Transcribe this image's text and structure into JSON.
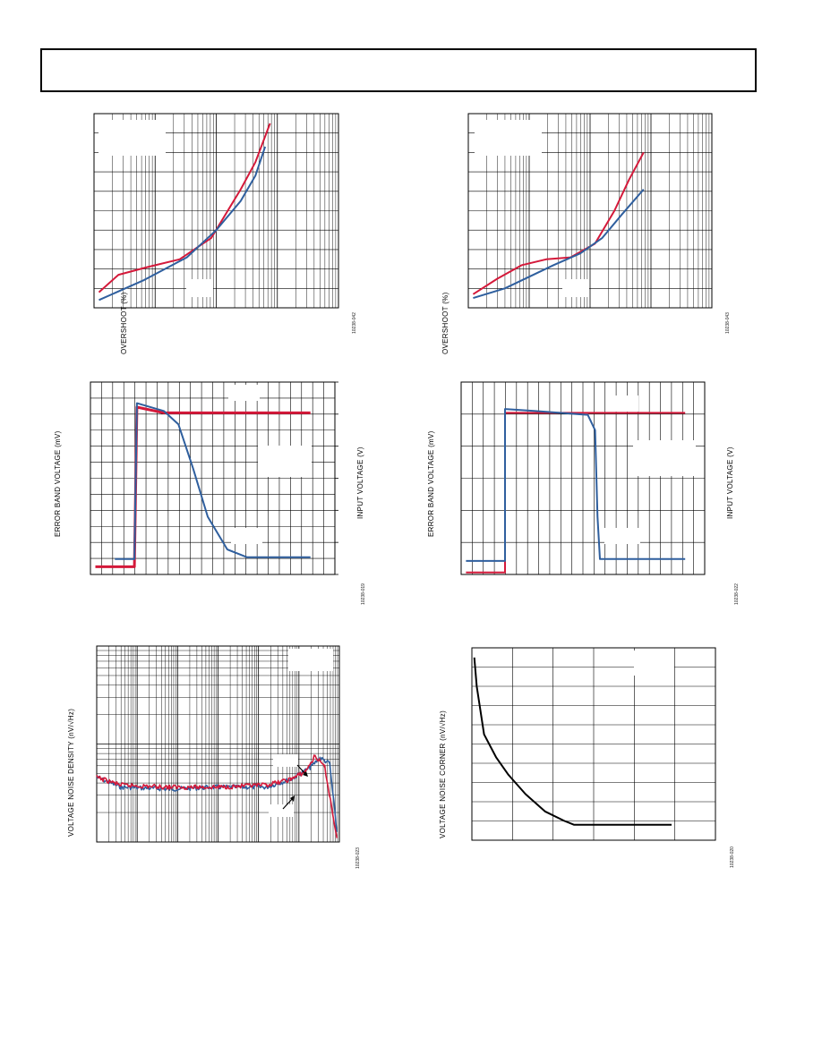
{
  "page": {
    "colors": {
      "series_red": "#d4193a",
      "series_blue": "#2f5f9e",
      "grid": "#000000",
      "label_box": "#ffffff"
    }
  },
  "figures": [
    {
      "id": "fig-overshoot-left",
      "ylabel": "OVERSHOOT (%)",
      "fig_id": "10238-042",
      "chart_data": {
        "type": "line",
        "x_scale": "log",
        "grid": true,
        "series": [
          {
            "color": "red",
            "points": [
              [
                0.02,
                0.08
              ],
              [
                0.1,
                0.17
              ],
              [
                0.22,
                0.21
              ],
              [
                0.35,
                0.25
              ],
              [
                0.48,
                0.36
              ],
              [
                0.6,
                0.61
              ],
              [
                0.66,
                0.75
              ],
              [
                0.72,
                0.95
              ]
            ]
          },
          {
            "color": "blue",
            "points": [
              [
                0.02,
                0.04
              ],
              [
                0.2,
                0.14
              ],
              [
                0.38,
                0.26
              ],
              [
                0.5,
                0.4
              ],
              [
                0.6,
                0.55
              ],
              [
                0.66,
                0.68
              ],
              [
                0.7,
                0.83
              ]
            ]
          }
        ]
      }
    },
    {
      "id": "fig-overshoot-right",
      "ylabel": "OVERSHOOT (%)",
      "fig_id": "10238-043",
      "chart_data": {
        "type": "line",
        "x_scale": "log",
        "grid": true,
        "series": [
          {
            "color": "red",
            "points": [
              [
                0.02,
                0.07
              ],
              [
                0.12,
                0.15
              ],
              [
                0.22,
                0.22
              ],
              [
                0.32,
                0.25
              ],
              [
                0.42,
                0.26
              ],
              [
                0.52,
                0.33
              ],
              [
                0.6,
                0.5
              ],
              [
                0.66,
                0.66
              ],
              [
                0.72,
                0.8
              ]
            ]
          },
          {
            "color": "blue",
            "points": [
              [
                0.02,
                0.05
              ],
              [
                0.15,
                0.1
              ],
              [
                0.25,
                0.16
              ],
              [
                0.35,
                0.22
              ],
              [
                0.46,
                0.28
              ],
              [
                0.55,
                0.36
              ],
              [
                0.63,
                0.48
              ],
              [
                0.72,
                0.61
              ]
            ]
          }
        ]
      }
    },
    {
      "id": "fig-settling-left",
      "ylabel": "ERROR BAND VOLTAGE (mV)",
      "y2label": "INPUT VOLTAGE (V)",
      "fig_id": "10238-019",
      "chart_data": {
        "type": "line",
        "grid": true,
        "series": [
          {
            "color": "red",
            "points": [
              [
                0.02,
                0.04
              ],
              [
                0.18,
                0.04
              ],
              [
                0.19,
                0.87
              ],
              [
                0.3,
                0.84
              ],
              [
                0.9,
                0.84
              ]
            ]
          },
          {
            "color": "blue",
            "points": [
              [
                0.1,
                0.08
              ],
              [
                0.18,
                0.08
              ],
              [
                0.19,
                0.89
              ],
              [
                0.3,
                0.85
              ],
              [
                0.36,
                0.78
              ],
              [
                0.42,
                0.55
              ],
              [
                0.48,
                0.3
              ],
              [
                0.56,
                0.13
              ],
              [
                0.64,
                0.09
              ],
              [
                0.9,
                0.09
              ]
            ]
          }
        ]
      }
    },
    {
      "id": "fig-settling-right",
      "ylabel": "ERROR BAND VOLTAGE (mV)",
      "y2label": "INPUT VOLTAGE (V)",
      "fig_id": "10238-022",
      "chart_data": {
        "type": "line",
        "grid": true,
        "series": [
          {
            "color": "red",
            "points": [
              [
                0.02,
                0.01
              ],
              [
                0.18,
                0.01
              ],
              [
                0.18,
                0.84
              ],
              [
                0.92,
                0.84
              ]
            ]
          },
          {
            "color": "blue",
            "points": [
              [
                0.02,
                0.07
              ],
              [
                0.18,
                0.07
              ],
              [
                0.18,
                0.86
              ],
              [
                0.3,
                0.85
              ],
              [
                0.52,
                0.83
              ],
              [
                0.55,
                0.75
              ],
              [
                0.56,
                0.3
              ],
              [
                0.57,
                0.08
              ],
              [
                0.92,
                0.08
              ]
            ]
          }
        ]
      }
    },
    {
      "id": "fig-noise-density",
      "ylabel": "VOLTAGE NOISE DENSITY (nV/√Hz)",
      "fig_id": "10238-023",
      "chart_data": {
        "type": "line",
        "x_scale": "log",
        "y_scale": "log",
        "grid": true,
        "series": [
          {
            "color": "blue",
            "points": [
              [
                0.0,
                0.33
              ],
              [
                0.1,
                0.28
              ],
              [
                0.3,
                0.27
              ],
              [
                0.5,
                0.28
              ],
              [
                0.7,
                0.28
              ],
              [
                0.8,
                0.32
              ],
              [
                0.88,
                0.38
              ],
              [
                0.92,
                0.43
              ],
              [
                0.96,
                0.4
              ],
              [
                0.99,
                0.05
              ]
            ]
          },
          {
            "color": "red",
            "points": [
              [
                0.0,
                0.33
              ],
              [
                0.1,
                0.29
              ],
              [
                0.3,
                0.28
              ],
              [
                0.5,
                0.28
              ],
              [
                0.7,
                0.29
              ],
              [
                0.8,
                0.32
              ],
              [
                0.86,
                0.36
              ],
              [
                0.9,
                0.44
              ],
              [
                0.94,
                0.38
              ],
              [
                0.99,
                0.02
              ]
            ]
          }
        ]
      }
    },
    {
      "id": "fig-noise-corner",
      "ylabel": "VOLTAGE NOISE CORNER (nV/√Hz)",
      "fig_id": "10238-020",
      "chart_data": {
        "type": "line",
        "grid": true,
        "series": [
          {
            "color": "black",
            "points": [
              [
                0.01,
                0.95
              ],
              [
                0.02,
                0.8
              ],
              [
                0.05,
                0.55
              ],
              [
                0.1,
                0.43
              ],
              [
                0.15,
                0.34
              ],
              [
                0.22,
                0.24
              ],
              [
                0.3,
                0.15
              ],
              [
                0.38,
                0.1
              ],
              [
                0.42,
                0.08
              ],
              [
                0.82,
                0.08
              ]
            ]
          }
        ]
      }
    }
  ]
}
